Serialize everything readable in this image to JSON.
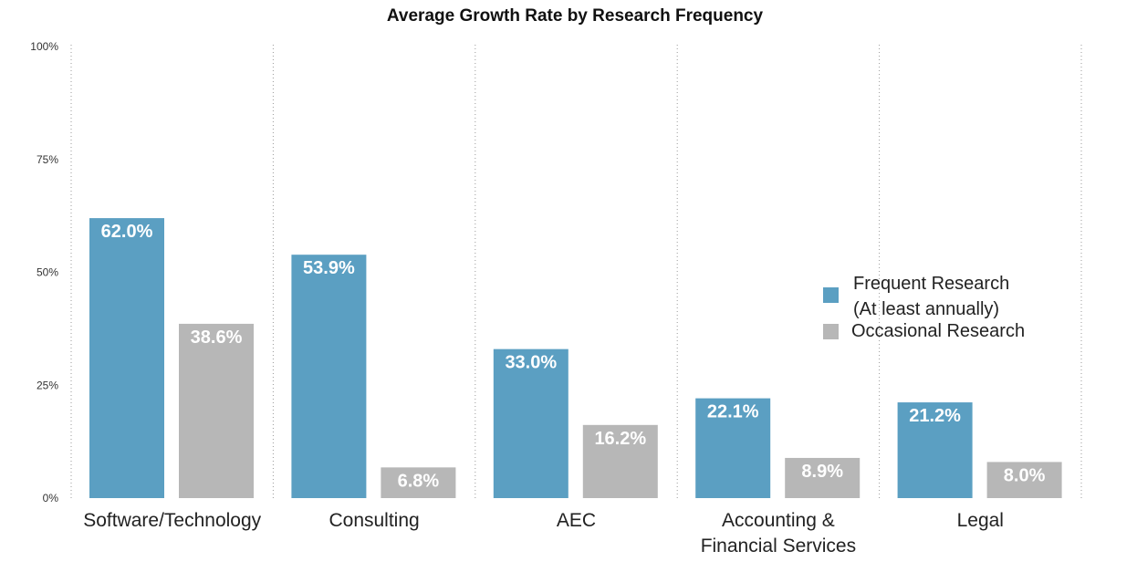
{
  "chart_data": {
    "type": "bar",
    "title": "Average Growth Rate by Research Frequency",
    "xlabel": "",
    "ylabel": "",
    "ylim": [
      0,
      100
    ],
    "y_ticks": [
      {
        "value": 0,
        "label": "0%"
      },
      {
        "value": 25,
        "label": "25%"
      },
      {
        "value": 50,
        "label": "50%"
      },
      {
        "value": 75,
        "label": "75%"
      },
      {
        "value": 100,
        "label": "100%"
      }
    ],
    "categories": [
      [
        "Software/Technology"
      ],
      [
        "Consulting"
      ],
      [
        "AEC"
      ],
      [
        "Accounting &",
        "Financial Services"
      ],
      [
        "Legal"
      ]
    ],
    "series": [
      {
        "name": "Frequent Research (At least annually)",
        "legend_lines": [
          "Frequent Research",
          "(At least annually)"
        ],
        "color": "#5b9fc2",
        "values": [
          62.0,
          53.9,
          33.0,
          22.1,
          21.2
        ],
        "labels": [
          "62.0%",
          "53.9%",
          "33.0%",
          "22.1%",
          "21.2%"
        ]
      },
      {
        "name": "Occasional Research",
        "legend_lines": [
          "Occasional Research"
        ],
        "color": "#b7b7b7",
        "values": [
          38.6,
          6.8,
          16.2,
          8.9,
          8.0
        ],
        "labels": [
          "38.6%",
          "6.8%",
          "16.2%",
          "8.9%",
          "8.0%"
        ]
      }
    ],
    "legend_position": "right",
    "grid": "vertical dotted separators between categories"
  }
}
